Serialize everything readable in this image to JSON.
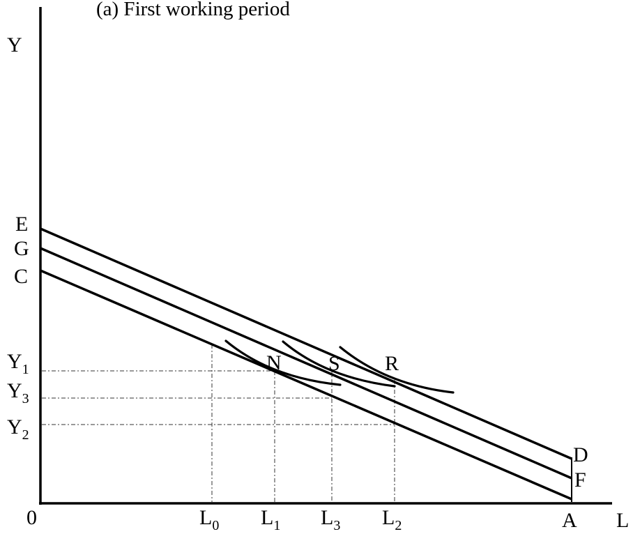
{
  "title": "(a) First working period",
  "axes": {
    "y_label": "Y",
    "x_label": "L",
    "origin_label": "0"
  },
  "y_intercept_labels": {
    "E": "E",
    "G": "G",
    "C": "C"
  },
  "right_end_labels": {
    "D": "D",
    "F": "F",
    "A": "A"
  },
  "y_levels": [
    {
      "base": "Y",
      "sub": "1"
    },
    {
      "base": "Y",
      "sub": "3"
    },
    {
      "base": "Y",
      "sub": "2"
    }
  ],
  "x_levels": [
    {
      "base": "L",
      "sub": "0"
    },
    {
      "base": "L",
      "sub": "1"
    },
    {
      "base": "L",
      "sub": "3"
    },
    {
      "base": "L",
      "sub": "2"
    }
  ],
  "tangency_points": {
    "N": "N",
    "S": "S",
    "R": "R"
  }
}
